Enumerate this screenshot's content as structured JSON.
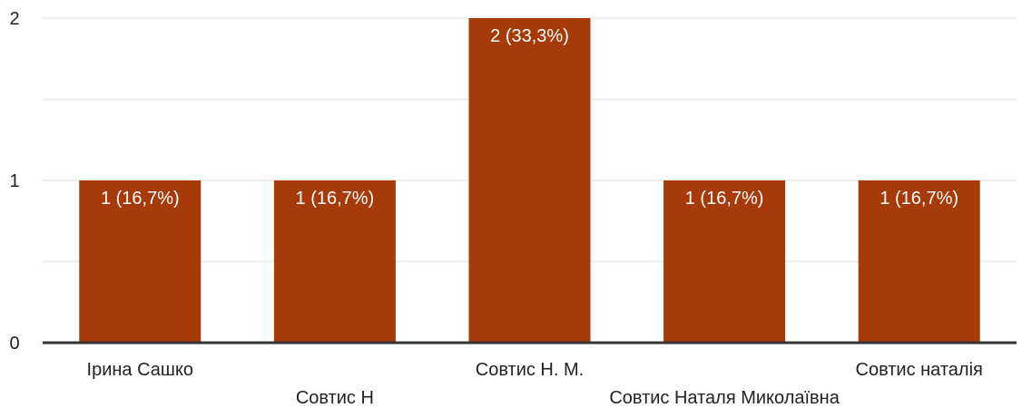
{
  "chart_data": {
    "type": "bar",
    "categories": [
      "Ірина Сашко",
      "Совтис Н",
      "Совтис Н. М.",
      "Совтис Наталя Миколаївна",
      "Совтис наталія"
    ],
    "values": [
      1,
      1,
      2,
      1,
      1
    ],
    "data_labels": [
      "1 (16,7%)",
      "1 (16,7%)",
      "2 (33,3%)",
      "1 (16,7%)",
      "1 (16,7%)"
    ],
    "yticks": [
      0,
      1,
      2
    ],
    "ylim": [
      0,
      2
    ],
    "grid": true,
    "minor_grid": true,
    "bar_color": "#a63a08",
    "grid_color": "#ececec",
    "axis_color": "#333333"
  }
}
